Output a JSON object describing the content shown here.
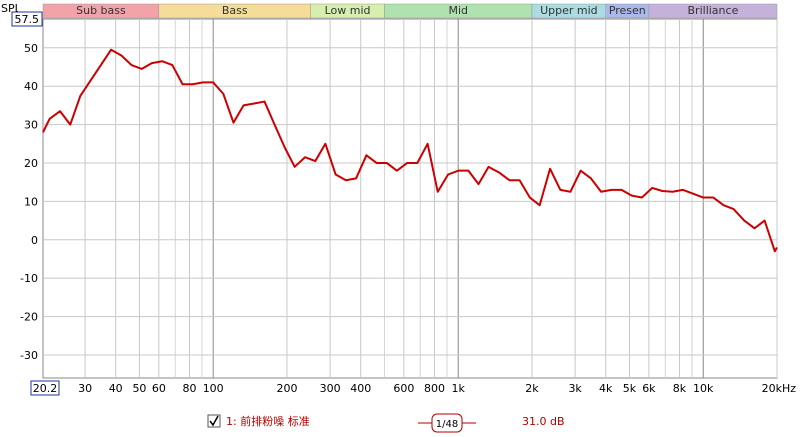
{
  "chart_data": {
    "type": "line",
    "ylabel": "SPL",
    "xscale": "log",
    "grid": true,
    "xlim": [
      20.2,
      20000
    ],
    "ylim": [
      -36,
      57.5
    ],
    "xticks": [
      20.2,
      30,
      40,
      50,
      60,
      80,
      100,
      200,
      300,
      400,
      600,
      800,
      {
        "value": 1000,
        "label": "1k"
      },
      {
        "value": 2000,
        "label": "2k"
      },
      {
        "value": 3000,
        "label": "3k"
      },
      {
        "value": 4000,
        "label": "4k"
      },
      {
        "value": 5000,
        "label": "5k"
      },
      {
        "value": 6000,
        "label": "6k"
      },
      {
        "value": 8000,
        "label": "8k"
      },
      {
        "value": 10000,
        "label": "10k"
      },
      {
        "value": 20000,
        "label": "20kHz"
      }
    ],
    "minor_xticks": [
      70,
      90,
      500,
      700,
      900,
      7000,
      9000
    ],
    "yticks": [
      57.5,
      50,
      40,
      30,
      20,
      10,
      0,
      -10,
      -20,
      -30
    ],
    "bands": [
      {
        "label": "Sub bass",
        "from": 20.2,
        "to": 60,
        "color": "#f2a3aa"
      },
      {
        "label": "Bass",
        "from": 60,
        "to": 250,
        "color": "#f5dc98"
      },
      {
        "label": "Low mid",
        "from": 250,
        "to": 500,
        "color": "#d6eeae"
      },
      {
        "label": "Mid",
        "from": 500,
        "to": 2000,
        "color": "#aee2ae"
      },
      {
        "label": "Upper mid",
        "from": 2000,
        "to": 4000,
        "color": "#aadce2"
      },
      {
        "label": "Presen",
        "from": 4000,
        "to": 6000,
        "color": "#aab8ea"
      },
      {
        "label": "Brilliance",
        "from": 6000,
        "to": 20000,
        "color": "#c4b2da"
      }
    ],
    "x": [
      20.2,
      21.5,
      23.7,
      26.1,
      28.7,
      31.6,
      34.8,
      38.3,
      42.2,
      46.4,
      51.1,
      56.2,
      61.9,
      68.1,
      75,
      82.5,
      90.9,
      100,
      110,
      121,
      133,
      147,
      162,
      178,
      196,
      215,
      237,
      261,
      287,
      316,
      348,
      383,
      422,
      464,
      511,
      562,
      619,
      681,
      750,
      825,
      909,
      1000,
      1100,
      1210,
      1330,
      1470,
      1620,
      1780,
      1960,
      2150,
      2370,
      2610,
      2870,
      3160,
      3480,
      3830,
      4220,
      4640,
      5110,
      5620,
      6190,
      6810,
      7500,
      8250,
      9090,
      10000,
      11000,
      12100,
      13300,
      14700,
      16200,
      17800,
      19600,
      20000
    ],
    "series": [
      {
        "name": "1: 前排粉噪 标准",
        "color": "#cc0000",
        "values": [
          28,
          31.5,
          33.5,
          30,
          37.5,
          41.5,
          45.5,
          49.5,
          48,
          45.5,
          44.5,
          46,
          46.5,
          45.5,
          40.5,
          40.5,
          41,
          41,
          38,
          30.5,
          35,
          35.5,
          36,
          30,
          24,
          19,
          21.5,
          20.5,
          25,
          17,
          15.5,
          16,
          22,
          20,
          20,
          18,
          20,
          20,
          25,
          12.5,
          17,
          18,
          18,
          14.5,
          19,
          17.5,
          15.5,
          15.5,
          11,
          9,
          18.5,
          13,
          12.5,
          18,
          16,
          12.5,
          13,
          13,
          11.5,
          11,
          13.5,
          12.7,
          12.5,
          13,
          12,
          11,
          11,
          9,
          8,
          5,
          3,
          5,
          -3,
          -2
        ]
      }
    ],
    "smoothing": "1/48",
    "level": "31.0 dB"
  }
}
